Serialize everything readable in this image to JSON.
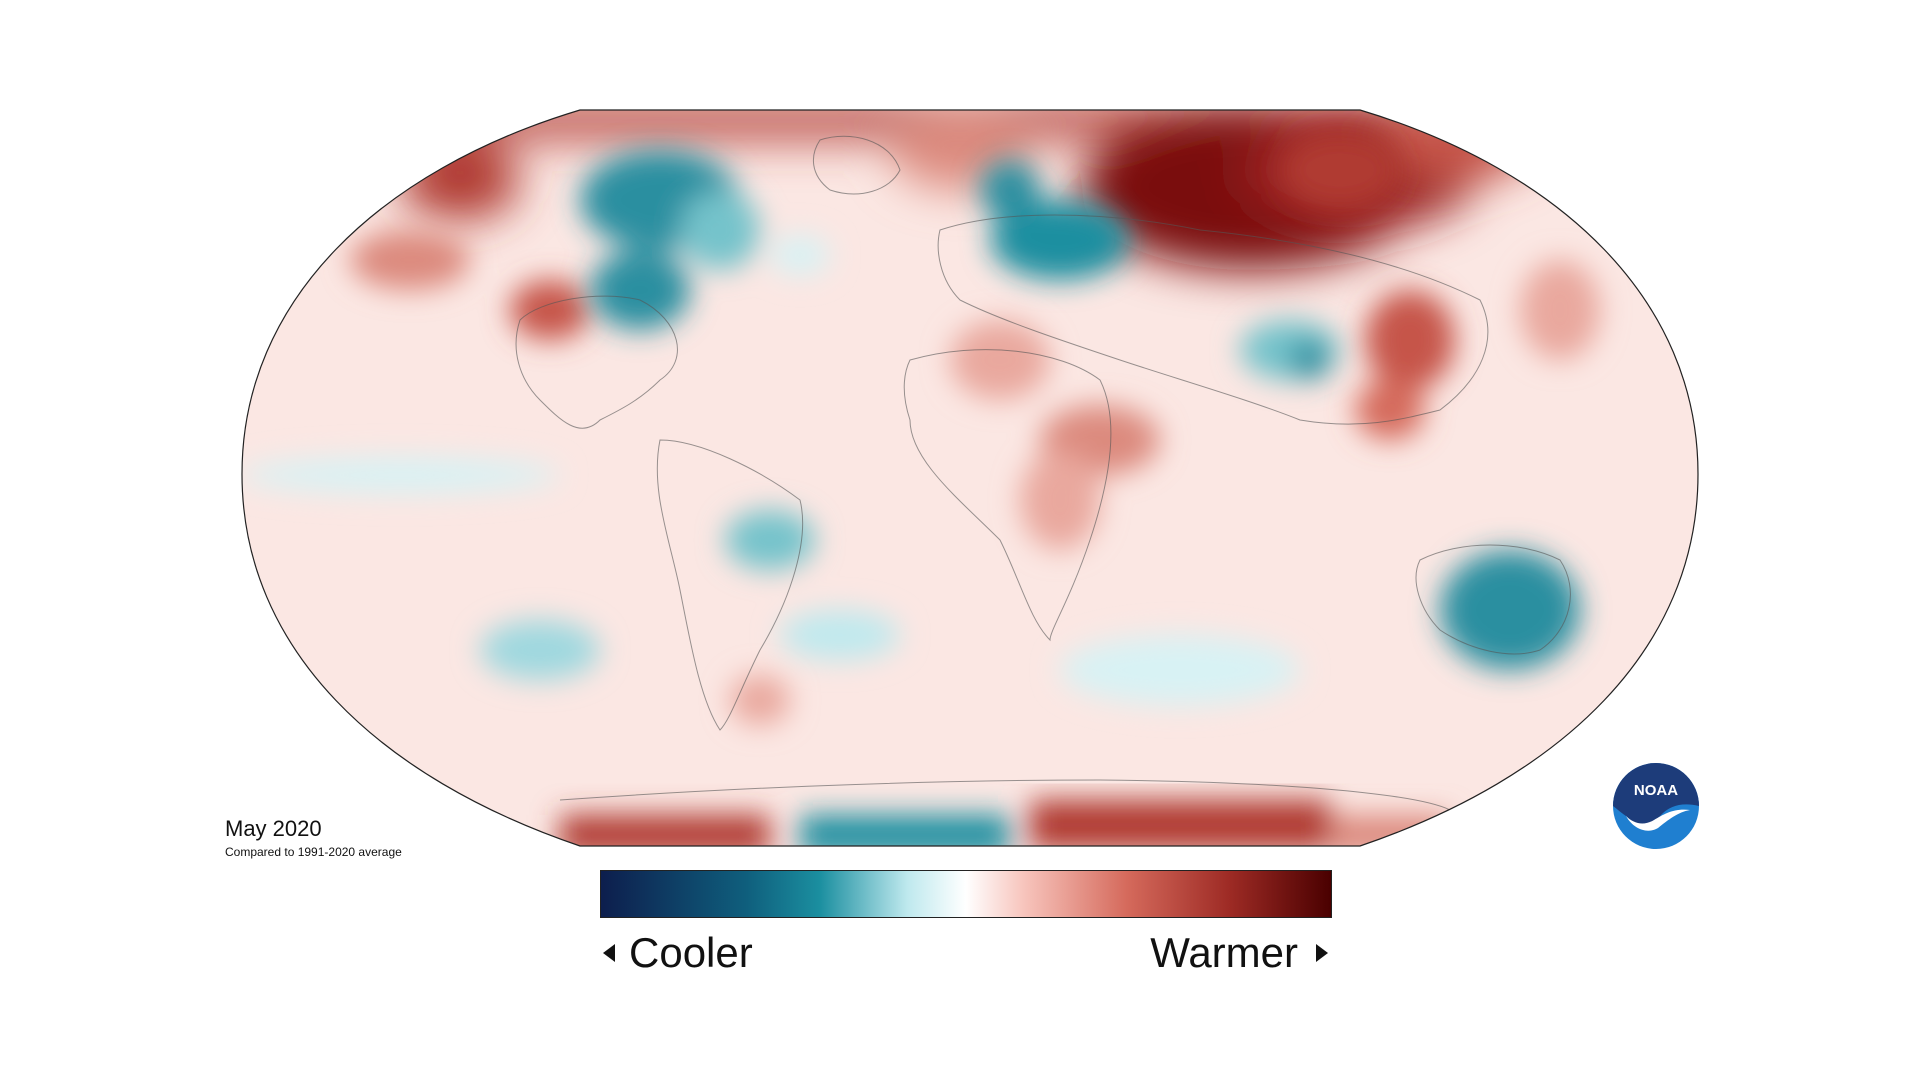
{
  "map": {
    "date": "May 2020",
    "baseline": "Compared to 1991-2020 average"
  },
  "legend": {
    "cooler_label": "Cooler",
    "warmer_label": "Warmer",
    "colors": [
      "#0d1e4d",
      "#0f5f7d",
      "#1b8fa0",
      "#bfe9ee",
      "#ffffff",
      "#f7c4bc",
      "#d56a5c",
      "#9e2b25",
      "#4a0000"
    ]
  },
  "logo": {
    "text": "NOAA",
    "colors": {
      "navy": "#1d3c7a",
      "blue": "#1f7fd0"
    }
  },
  "anomaly_colors": {
    "warm_light": "#f6c9c2",
    "warm_mid": "#dc8a7e",
    "warm_strong": "#b03a33",
    "warm_extreme": "#7a0f0f",
    "cool_light": "#d8f2f4",
    "cool_mid": "#74c3cb",
    "cool_strong": "#2a8fa0"
  }
}
